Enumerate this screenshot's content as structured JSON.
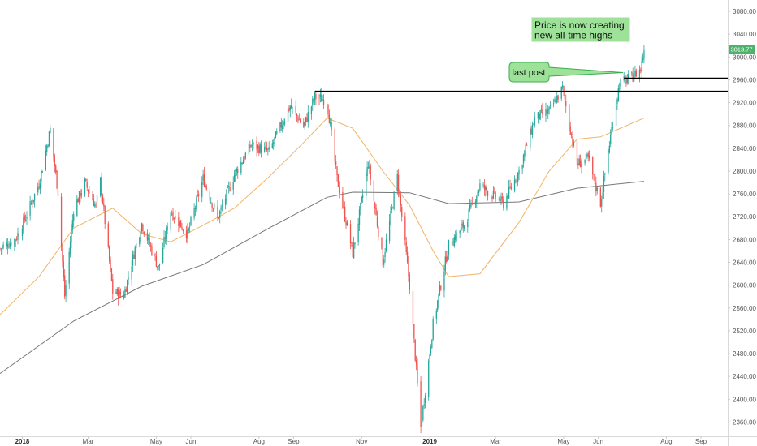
{
  "chart_data": {
    "type": "candlestick",
    "y_axis": {
      "ticks": [
        "3080.00",
        "3040.00",
        "3000.00",
        "2960.00",
        "2920.00",
        "2880.00",
        "2840.00",
        "2800.00",
        "2760.00",
        "2720.00",
        "2680.00",
        "2640.00",
        "2600.00",
        "2560.00",
        "2520.00",
        "2480.00",
        "2440.00",
        "2400.00",
        "2360.00"
      ],
      "range": [
        2335,
        3100
      ],
      "position": "right"
    },
    "x_axis": {
      "ticks": [
        {
          "label": "2018",
          "bold": true
        },
        {
          "label": "Mar",
          "bold": false
        },
        {
          "label": "May",
          "bold": false
        },
        {
          "label": "Jun",
          "bold": false
        },
        {
          "label": "Aug",
          "bold": false
        },
        {
          "label": "Sep",
          "bold": false
        },
        {
          "label": "Nov",
          "bold": false
        },
        {
          "label": "2019",
          "bold": true
        },
        {
          "label": "Mar",
          "bold": false
        },
        {
          "label": "May",
          "bold": false
        },
        {
          "label": "Jun",
          "bold": false
        },
        {
          "label": "Aug",
          "bold": false
        },
        {
          "label": "Sep",
          "bold": false
        }
      ],
      "range": [
        "2017-12-12",
        "2019-09-25"
      ]
    },
    "candles_close": [
      [
        "2017-12-12",
        2664
      ],
      [
        "2017-12-26",
        2681
      ],
      [
        "2018-01-05",
        2724
      ],
      [
        "2018-01-16",
        2778
      ],
      [
        "2018-01-26",
        2873
      ],
      [
        "2018-02-02",
        2762
      ],
      [
        "2018-02-08",
        2581
      ],
      [
        "2018-02-16",
        2733
      ],
      [
        "2018-02-26",
        2779
      ],
      [
        "2018-03-08",
        2738
      ],
      [
        "2018-03-12",
        2783
      ],
      [
        "2018-03-23",
        2588
      ],
      [
        "2018-04-02",
        2582
      ],
      [
        "2018-04-12",
        2664
      ],
      [
        "2018-04-18",
        2708
      ],
      [
        "2018-05-03",
        2630
      ],
      [
        "2018-05-14",
        2730
      ],
      [
        "2018-05-29",
        2689
      ],
      [
        "2018-06-12",
        2787
      ],
      [
        "2018-06-25",
        2717
      ],
      [
        "2018-07-10",
        2794
      ],
      [
        "2018-07-25",
        2846
      ],
      [
        "2018-08-10",
        2834
      ],
      [
        "2018-08-29",
        2914
      ],
      [
        "2018-09-10",
        2878
      ],
      [
        "2018-09-20",
        2930
      ],
      [
        "2018-10-01",
        2924
      ],
      [
        "2018-10-10",
        2786
      ],
      [
        "2018-10-24",
        2656
      ],
      [
        "2018-11-07",
        2814
      ],
      [
        "2018-11-20",
        2641
      ],
      [
        "2018-12-03",
        2790
      ],
      [
        "2018-12-14",
        2600
      ],
      [
        "2018-12-24",
        2351
      ],
      [
        "2019-01-04",
        2531
      ],
      [
        "2019-01-18",
        2670
      ],
      [
        "2019-02-01",
        2706
      ],
      [
        "2019-02-15",
        2775
      ],
      [
        "2019-03-08",
        2743
      ],
      [
        "2019-03-22",
        2800
      ],
      [
        "2019-04-05",
        2892
      ],
      [
        "2019-04-18",
        2905
      ],
      [
        "2019-04-30",
        2945
      ],
      [
        "2019-05-13",
        2812
      ],
      [
        "2019-05-23",
        2822
      ],
      [
        "2019-06-03",
        2744
      ],
      [
        "2019-06-14",
        2887
      ],
      [
        "2019-06-20",
        2954
      ],
      [
        "2019-07-01",
        2964
      ],
      [
        "2019-07-09",
        2979
      ],
      [
        "2019-07-12",
        3013.77
      ]
    ],
    "ma_50": [
      [
        "2017-12-12",
        2548
      ],
      [
        "2018-01-16",
        2615
      ],
      [
        "2018-02-16",
        2700
      ],
      [
        "2018-03-23",
        2735
      ],
      [
        "2018-04-18",
        2690
      ],
      [
        "2018-05-14",
        2676
      ],
      [
        "2018-06-12",
        2705
      ],
      [
        "2018-07-10",
        2735
      ],
      [
        "2018-08-10",
        2790
      ],
      [
        "2018-09-10",
        2850
      ],
      [
        "2018-10-01",
        2893
      ],
      [
        "2018-10-24",
        2875
      ],
      [
        "2018-11-20",
        2800
      ],
      [
        "2018-12-14",
        2740
      ],
      [
        "2019-01-04",
        2660
      ],
      [
        "2019-01-18",
        2615
      ],
      [
        "2019-02-15",
        2620
      ],
      [
        "2019-03-22",
        2710
      ],
      [
        "2019-04-18",
        2800
      ],
      [
        "2019-05-13",
        2856
      ],
      [
        "2019-06-03",
        2860
      ],
      [
        "2019-07-12",
        2893
      ]
    ],
    "ma_200": [
      [
        "2017-12-12",
        2445
      ],
      [
        "2018-02-16",
        2537
      ],
      [
        "2018-04-18",
        2598
      ],
      [
        "2018-06-12",
        2636
      ],
      [
        "2018-08-10",
        2700
      ],
      [
        "2018-10-01",
        2754
      ],
      [
        "2018-10-24",
        2763
      ],
      [
        "2018-12-14",
        2762
      ],
      [
        "2019-01-18",
        2743
      ],
      [
        "2019-03-22",
        2746
      ],
      [
        "2019-05-13",
        2770
      ],
      [
        "2019-07-12",
        2782
      ]
    ],
    "horizontal_levels": [
      {
        "from": "2018-09-20",
        "value": 2940
      },
      {
        "from": "2019-06-24",
        "value": 2963
      }
    ],
    "last_price": "3013.77",
    "annotations": [
      {
        "text": "Price is now creating new all-time highs"
      },
      {
        "text": "last post"
      }
    ],
    "colors": {
      "up": "#26a69a",
      "down": "#ef5350",
      "ma_50": "#f0b46a",
      "ma_200": "#777777",
      "level": "#000000",
      "label_bg": "#5ece8a",
      "note_bg": "#9ee29a",
      "note_border": "#3cae52",
      "last_price_bg": "#4db36b"
    },
    "grid": false,
    "legend": "none"
  },
  "annotation_main": {
    "line1": "Price is now creating",
    "line2": "new all-time highs"
  },
  "annotation_post": {
    "label": "last post"
  },
  "last_price_label": "3013.77"
}
